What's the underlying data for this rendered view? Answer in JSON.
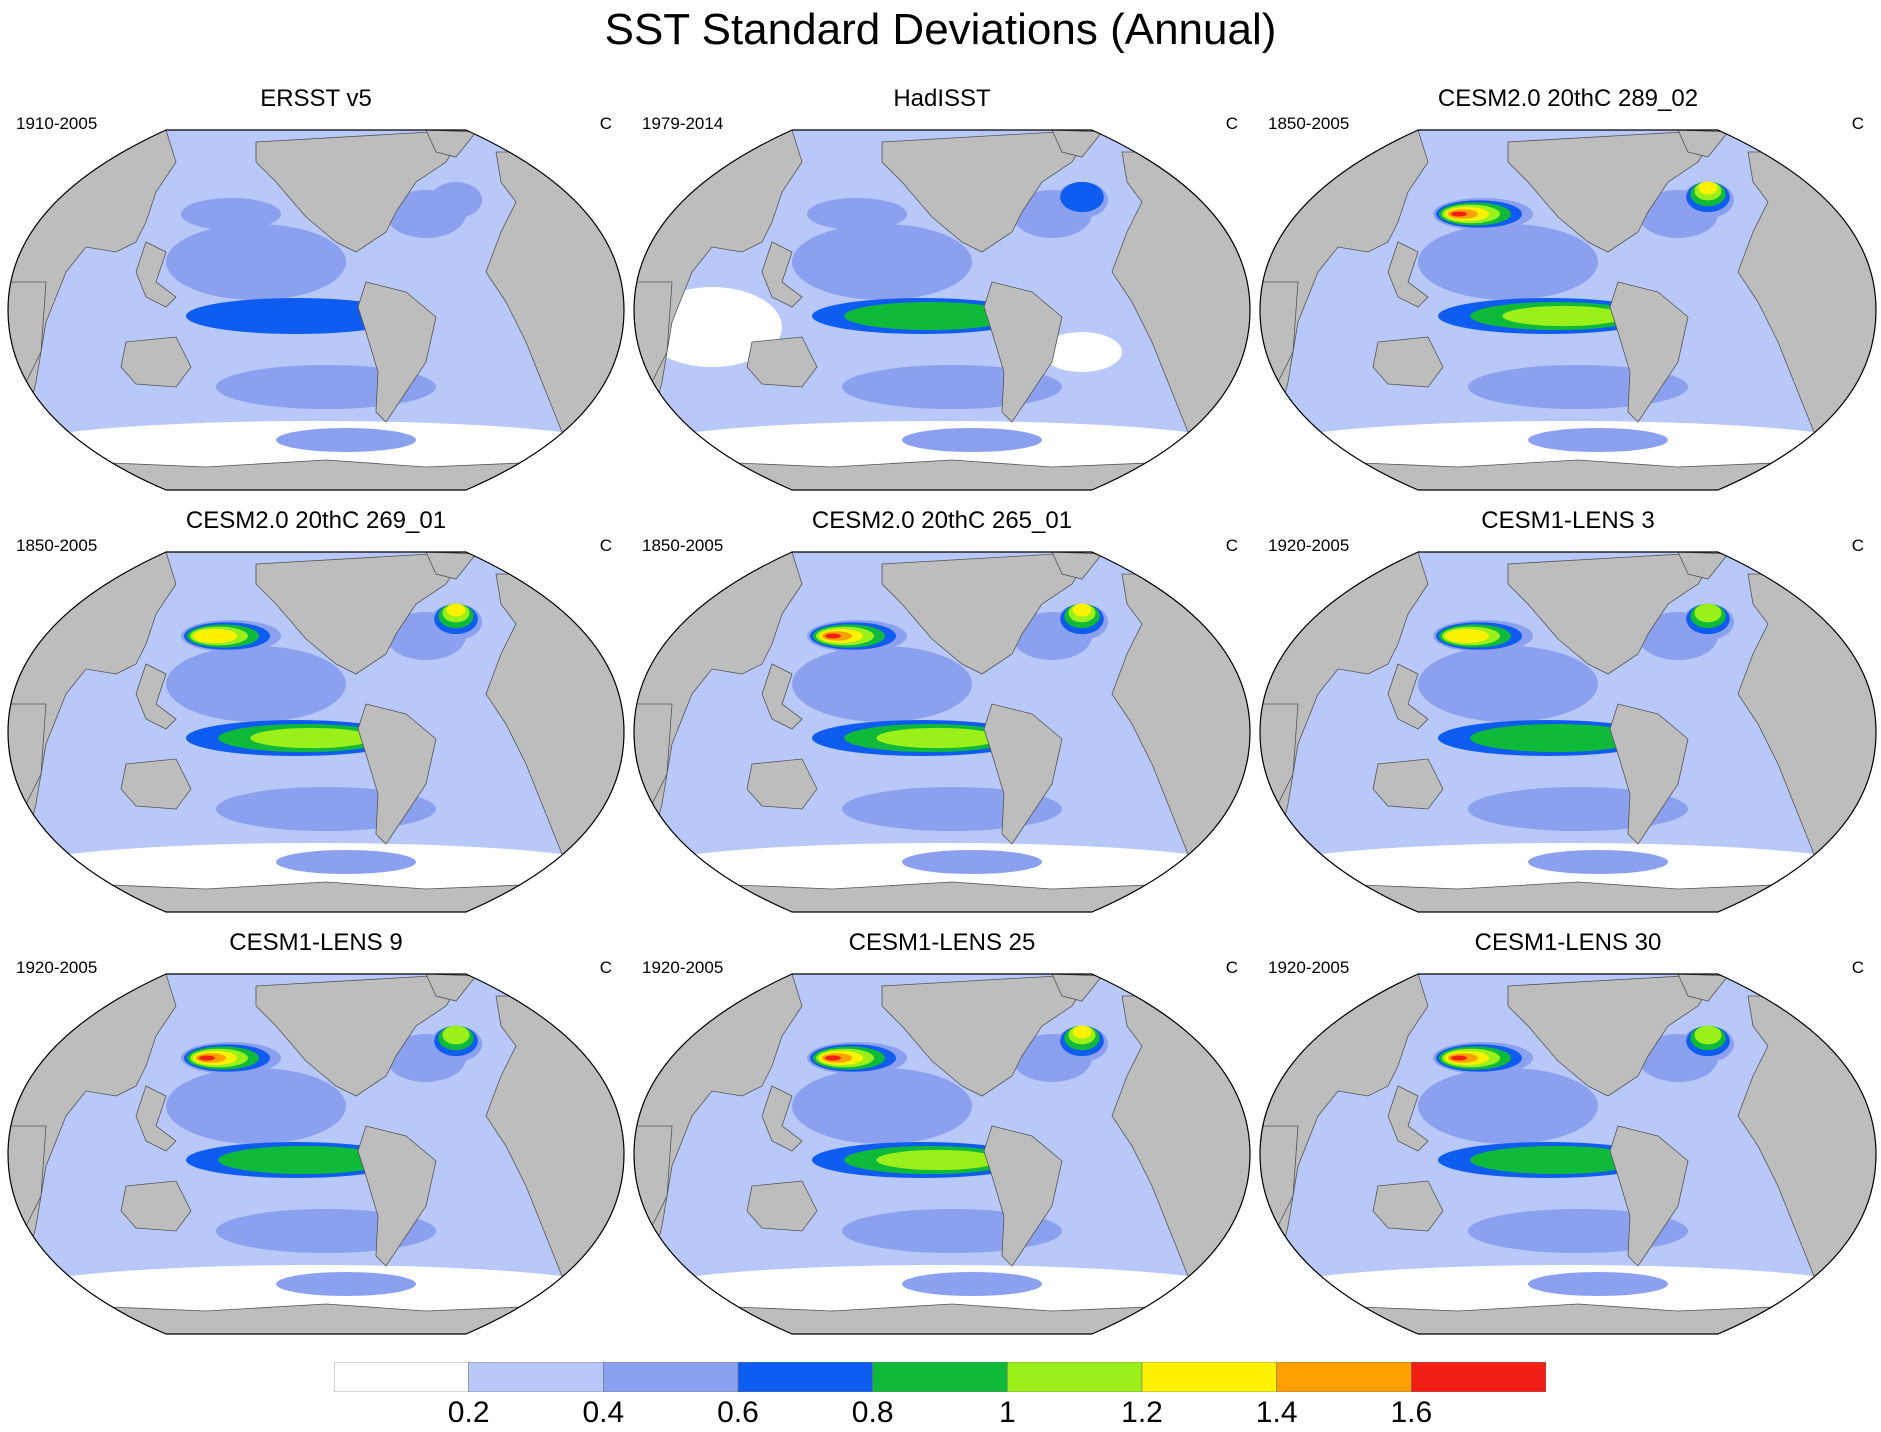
{
  "title": "SST Standard Deviations (Annual)",
  "colors": {
    "land": "#bdbdbd",
    "coast": "#555555",
    "levels": [
      "#ffffff",
      "#b8c8f8",
      "#8ca0f0",
      "#0f5cf0",
      "#0fba3a",
      "#9bf01a",
      "#fff200",
      "#ff9f00",
      "#f01e14"
    ]
  },
  "panels": [
    {
      "title": "ERSST v5",
      "years": "1910-2005",
      "units": "C",
      "enso_level": 3,
      "kuroshio_level": 2,
      "gulf_level": 2
    },
    {
      "title": "HadISST",
      "years": "1979-2014",
      "units": "C",
      "enso_level": 4,
      "kuroshio_level": 2,
      "gulf_level": 3
    },
    {
      "title": "CESM2.0 20thC 289_02",
      "years": "1850-2005",
      "units": "C",
      "enso_level": 5,
      "kuroshio_level": 8,
      "gulf_level": 6
    },
    {
      "title": "CESM2.0 20thC 269_01",
      "years": "1850-2005",
      "units": "C",
      "enso_level": 5,
      "kuroshio_level": 6,
      "gulf_level": 6
    },
    {
      "title": "CESM2.0 20thC 265_01",
      "years": "1850-2005",
      "units": "C",
      "enso_level": 5,
      "kuroshio_level": 8,
      "gulf_level": 6
    },
    {
      "title": "CESM1-LENS 3",
      "years": "1920-2005",
      "units": "C",
      "enso_level": 4,
      "kuroshio_level": 6,
      "gulf_level": 5
    },
    {
      "title": "CESM1-LENS 9",
      "years": "1920-2005",
      "units": "C",
      "enso_level": 4,
      "kuroshio_level": 8,
      "gulf_level": 5
    },
    {
      "title": "CESM1-LENS 25",
      "years": "1920-2005",
      "units": "C",
      "enso_level": 5,
      "kuroshio_level": 8,
      "gulf_level": 6
    },
    {
      "title": "CESM1-LENS 30",
      "years": "1920-2005",
      "units": "C",
      "enso_level": 4,
      "kuroshio_level": 8,
      "gulf_level": 5
    }
  ],
  "colorbar": {
    "labels": [
      "0.2",
      "0.4",
      "0.6",
      "0.8",
      "1",
      "1.2",
      "1.4",
      "1.6"
    ]
  }
}
